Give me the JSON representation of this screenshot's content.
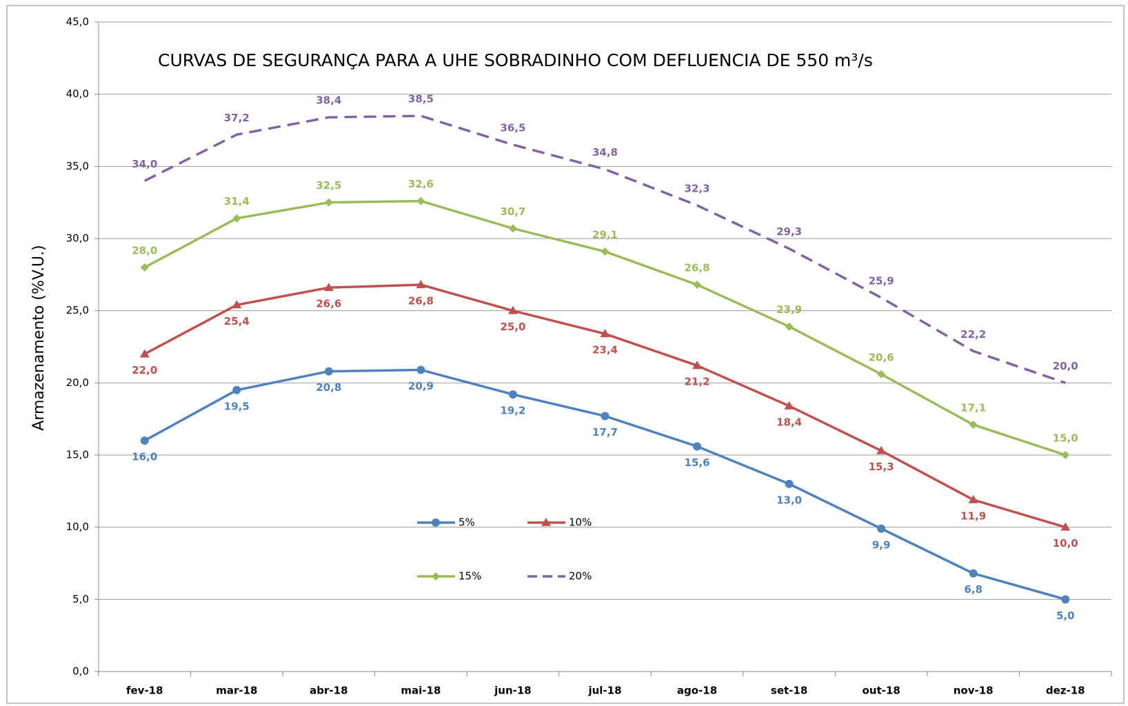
{
  "chart_data": {
    "type": "line",
    "title": "CURVAS DE SEGURANÇA PARA A UHE SOBRADINHO COM DEFLUENCIA DE 550 m³/s",
    "y_label": "Armazenamento (%V.U.)",
    "categories": [
      "fev-18",
      "mar-18",
      "abr-18",
      "mai-18",
      "jun-18",
      "jul-18",
      "ago-18",
      "set-18",
      "out-18",
      "nov-18",
      "dez-18"
    ],
    "ylim": [
      0,
      45
    ],
    "yticks": [
      {
        "value": 0,
        "label": "0,0"
      },
      {
        "value": 5,
        "label": "5,0"
      },
      {
        "value": 10,
        "label": "10,0"
      },
      {
        "value": 15,
        "label": "15,0"
      },
      {
        "value": 20,
        "label": "20,0"
      },
      {
        "value": 25,
        "label": "25,0"
      },
      {
        "value": 30,
        "label": "30,0"
      },
      {
        "value": 35,
        "label": "35,0"
      },
      {
        "value": 40,
        "label": "40,0"
      },
      {
        "value": 45,
        "label": "45,0"
      }
    ],
    "grid": true,
    "series": [
      {
        "name": "5%",
        "color": "#4f81bd",
        "marker": "circle",
        "dashed": false,
        "labels": "below",
        "values": [
          16.0,
          19.5,
          20.8,
          20.9,
          19.2,
          17.7,
          15.6,
          13.0,
          9.9,
          6.8,
          5.0
        ],
        "value_labels": [
          "16,0",
          "19,5",
          "20,8",
          "20,9",
          "19,2",
          "17,7",
          "15,6",
          "13,0",
          "9,9",
          "6,8",
          "5,0"
        ]
      },
      {
        "name": "10%",
        "color": "#c0504d",
        "marker": "triangle",
        "dashed": false,
        "labels": "below",
        "values": [
          22.0,
          25.4,
          26.6,
          26.8,
          25.0,
          23.4,
          21.2,
          18.4,
          15.3,
          11.9,
          10.0
        ],
        "value_labels": [
          "22,0",
          "25,4",
          "26,6",
          "26,8",
          "25,0",
          "23,4",
          "21,2",
          "18,4",
          "15,3",
          "11,9",
          "10,0"
        ]
      },
      {
        "name": "15%",
        "color": "#9bbb59",
        "marker": "diamond",
        "dashed": false,
        "labels": "above",
        "values": [
          28.0,
          31.4,
          32.5,
          32.6,
          30.7,
          29.1,
          26.8,
          23.9,
          20.6,
          17.1,
          15.0
        ],
        "value_labels": [
          "28,0",
          "31,4",
          "32,5",
          "32,6",
          "30,7",
          "29,1",
          "26,8",
          "23,9",
          "20,6",
          "17,1",
          "15,0"
        ]
      },
      {
        "name": "20%",
        "color": "#8064a2",
        "marker": "none",
        "dashed": true,
        "labels": "above",
        "values": [
          34.0,
          37.2,
          38.4,
          38.5,
          36.5,
          34.8,
          32.3,
          29.3,
          25.9,
          22.2,
          20.0
        ],
        "value_labels": [
          "34,0",
          "37,2",
          "38,4",
          "38,5",
          "36,5",
          "34,8",
          "32,3",
          "29,3",
          "25,9",
          "22,2",
          "20,0"
        ]
      }
    ]
  }
}
